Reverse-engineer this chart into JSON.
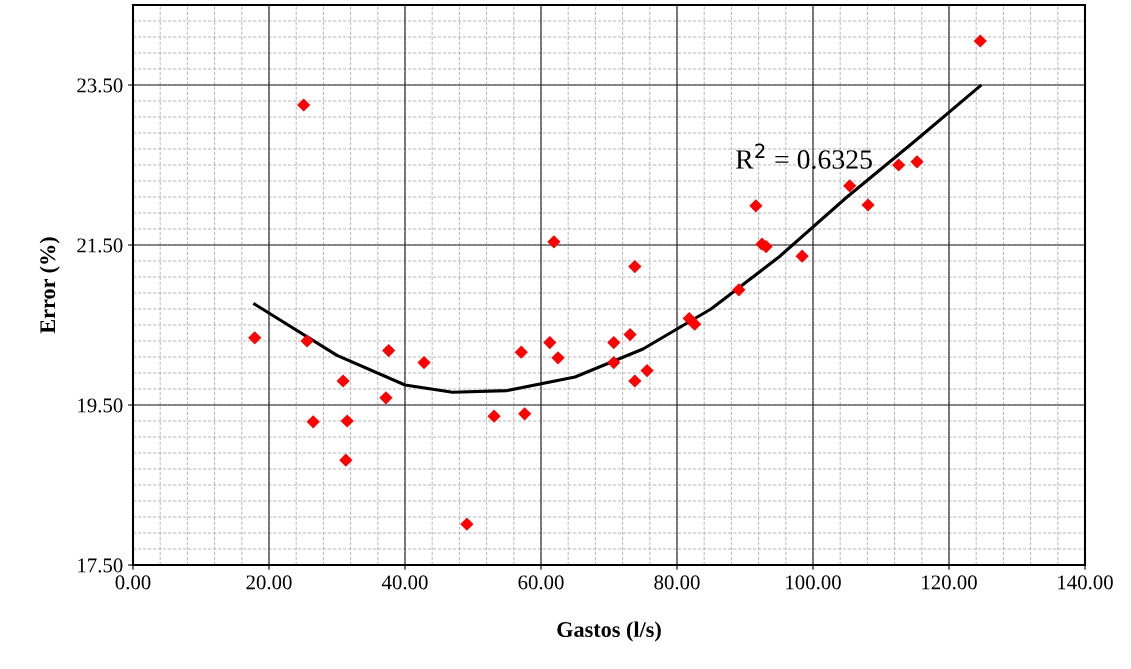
{
  "chart_data": {
    "type": "scatter",
    "xlabel": "Gastos (l/s)",
    "ylabel": "Error (%)",
    "xlim": [
      0,
      140
    ],
    "ylim": [
      17.5,
      24.5
    ],
    "xticks": [
      {
        "value": 0,
        "label": "0.00"
      },
      {
        "value": 20,
        "label": "20.00"
      },
      {
        "value": 40,
        "label": "40.00"
      },
      {
        "value": 60,
        "label": "60.00"
      },
      {
        "value": 80,
        "label": "80.00"
      },
      {
        "value": 100,
        "label": "100.00"
      },
      {
        "value": 120,
        "label": "120.00"
      },
      {
        "value": 140,
        "label": "140.00"
      }
    ],
    "yticks": [
      {
        "value": 17.5,
        "label": "17.50"
      },
      {
        "value": 19.5,
        "label": "19.50"
      },
      {
        "value": 21.5,
        "label": "21.50"
      },
      {
        "value": 23.5,
        "label": "23.50"
      }
    ],
    "grid": true,
    "series": [
      {
        "marker": "diamond",
        "color": "#ff0000",
        "x": [
          17.9,
          25.1,
          25.6,
          26.5,
          30.9,
          31.5,
          31.3,
          37.2,
          37.6,
          42.8,
          49.1,
          53.1,
          57.6,
          57.1,
          61.3,
          61.9,
          62.5,
          70.7,
          70.7,
          73.1,
          73.8,
          73.8,
          75.6,
          81.8,
          82.6,
          89.1,
          91.6,
          92.5,
          93.1,
          98.4,
          105.4,
          108.1,
          112.6,
          115.3,
          124.6
        ],
        "values": [
          20.34,
          23.25,
          20.3,
          19.29,
          19.8,
          19.3,
          18.81,
          19.59,
          20.18,
          20.03,
          18.01,
          19.36,
          19.39,
          20.16,
          20.28,
          21.54,
          20.09,
          20.28,
          20.03,
          20.38,
          19.8,
          21.23,
          19.93,
          20.58,
          20.51,
          20.94,
          21.99,
          21.51,
          21.48,
          21.36,
          22.24,
          22.0,
          22.5,
          22.54,
          24.05
        ]
      },
      {
        "type": "line",
        "marker": "none",
        "color": "#000000",
        "x": [
          17.9,
          30,
          40,
          47,
          55,
          65,
          75,
          85,
          95,
          105,
          115,
          124.6
        ],
        "values": [
          20.76,
          20.12,
          19.75,
          19.66,
          19.68,
          19.85,
          20.2,
          20.7,
          21.35,
          22.1,
          22.8,
          23.49
        ]
      }
    ],
    "annotations": [
      "R$^{2}$ = 0.6325"
    ]
  }
}
